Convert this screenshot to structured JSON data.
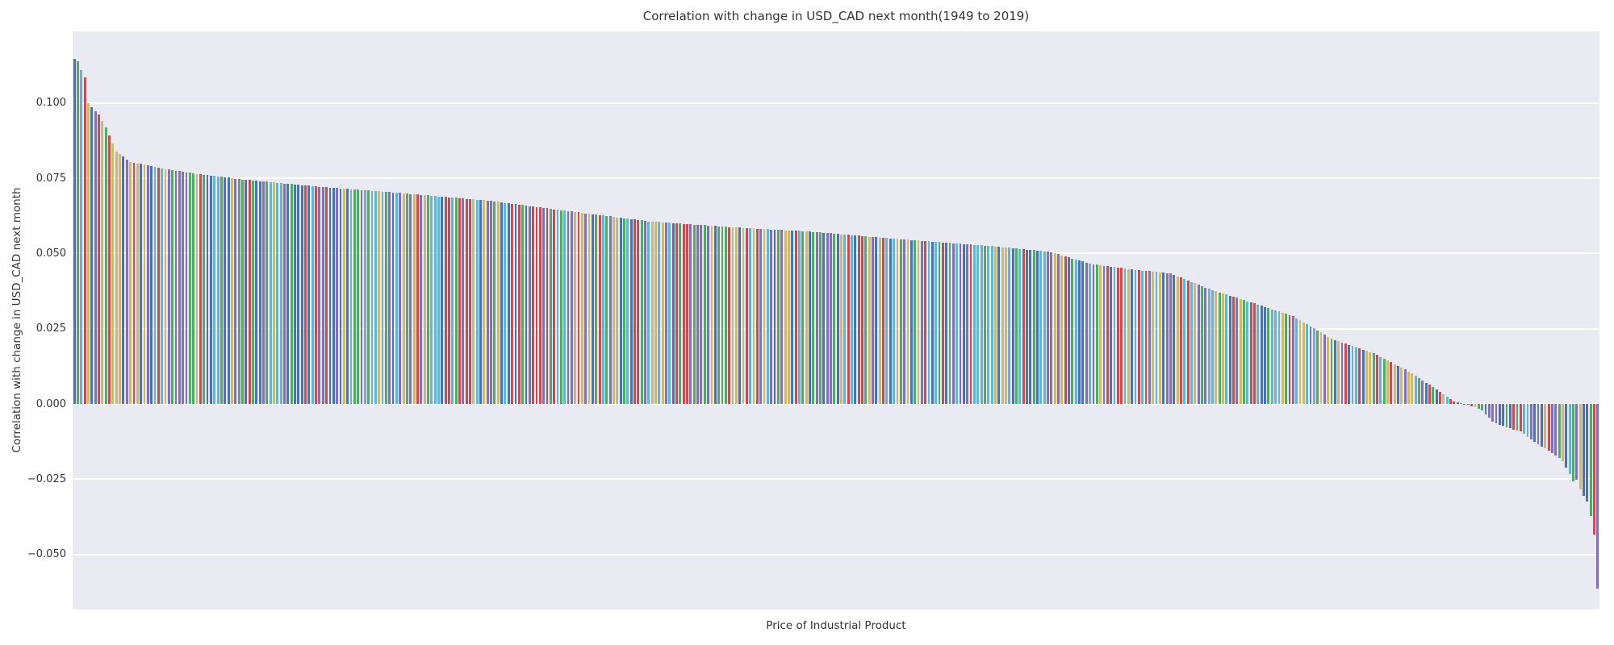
{
  "figure": {
    "background": "#ffffff",
    "plot_background": "#eaeaf2",
    "grid_color": "#ffffff",
    "text_color": "#343434"
  },
  "chart_data": {
    "type": "bar",
    "title": "Correlation with change in USD_CAD next month(1949 to 2019)",
    "xlabel": "Price of Industrial Product",
    "ylabel": "Correlation with change in USD_CAD next month",
    "grid": true,
    "legend": false,
    "x_tick_labels_visible": false,
    "n_bars": 436,
    "ylim": [
      -0.0683,
      0.1238
    ],
    "yticks": [
      0.1,
      0.075,
      0.05,
      0.025,
      0.0,
      -0.025,
      -0.05
    ],
    "ytick_labels": [
      "0.100",
      "0.075",
      "0.050",
      "0.025",
      "0.000",
      "−0.025",
      "−0.050"
    ],
    "bar_width_fraction": 0.66,
    "palette": [
      "#4c72b0",
      "#55a868",
      "#c44e52",
      "#8172b2",
      "#ccb974",
      "#64b5cd"
    ],
    "envelope_points": [
      [
        0,
        0.1148
      ],
      [
        1,
        0.114
      ],
      [
        2,
        0.111
      ],
      [
        3,
        0.1085
      ],
      [
        4,
        0.1
      ],
      [
        5,
        0.0985
      ],
      [
        7,
        0.0962
      ],
      [
        9,
        0.092
      ],
      [
        12,
        0.0838
      ],
      [
        16,
        0.0805
      ],
      [
        25,
        0.0782
      ],
      [
        35,
        0.0765
      ],
      [
        48,
        0.0746
      ],
      [
        71,
        0.0721
      ],
      [
        94,
        0.07
      ],
      [
        118,
        0.0676
      ],
      [
        141,
        0.0641
      ],
      [
        164,
        0.0607
      ],
      [
        187,
        0.0588
      ],
      [
        210,
        0.0573
      ],
      [
        233,
        0.055
      ],
      [
        256,
        0.053
      ],
      [
        266,
        0.052
      ],
      [
        279,
        0.0505
      ],
      [
        290,
        0.0466
      ],
      [
        302,
        0.0447
      ],
      [
        313,
        0.0434
      ],
      [
        325,
        0.0378
      ],
      [
        336,
        0.0338
      ],
      [
        348,
        0.0292
      ],
      [
        359,
        0.0217
      ],
      [
        371,
        0.0169
      ],
      [
        382,
        0.0102
      ],
      [
        389,
        0.0048
      ],
      [
        394,
        0.0008
      ],
      [
        398,
        -0.0003
      ],
      [
        402,
        -0.002
      ],
      [
        405,
        -0.006
      ],
      [
        409,
        -0.0078
      ],
      [
        413,
        -0.0091
      ],
      [
        417,
        -0.0127
      ],
      [
        421,
        -0.0154
      ],
      [
        425,
        -0.0189
      ],
      [
        428,
        -0.0256
      ],
      [
        429,
        -0.0252
      ],
      [
        430,
        -0.0285
      ],
      [
        431,
        -0.0305
      ],
      [
        432,
        -0.0325
      ],
      [
        433,
        -0.0372
      ],
      [
        434,
        -0.0435
      ],
      [
        435,
        -0.0613
      ]
    ],
    "color_overrides": {
      "0": 0,
      "1": 1,
      "2": 5,
      "3": 2,
      "4": 4,
      "5": 0,
      "429": 3,
      "430": 4,
      "431": 0,
      "432": 0,
      "433": 1,
      "434": 2,
      "435": 3
    }
  }
}
